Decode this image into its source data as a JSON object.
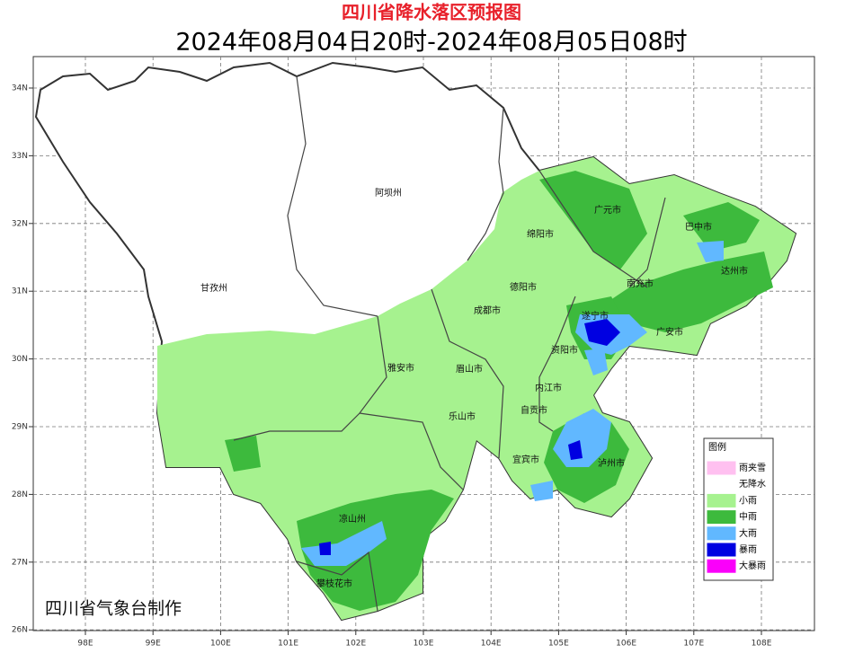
{
  "header": {
    "title": "四川省降水落区预报图",
    "subtitle": "2024年08月04日20时-2024年08月05日08时"
  },
  "map": {
    "lon_ticks": [
      "98E",
      "99E",
      "100E",
      "101E",
      "102E",
      "103E",
      "104E",
      "105E",
      "106E",
      "107E",
      "108E"
    ],
    "lat_ticks": [
      "34N",
      "33N",
      "32N",
      "31N",
      "30N",
      "29N",
      "28N",
      "27N",
      "26N"
    ],
    "regions": [
      "阿坝州",
      "广元市",
      "巴中市",
      "绵阳市",
      "达州市",
      "甘孜州",
      "德阳市",
      "南充市",
      "成都市",
      "遂宁市",
      "广安市",
      "资阳市",
      "雅安市",
      "眉山市",
      "内江市",
      "乐山市",
      "自贡市",
      "泸州市",
      "宜宾市",
      "凉山州",
      "攀枝花市"
    ],
    "credit": "四川省气象台制作"
  },
  "legend": {
    "title": "图例",
    "items": [
      {
        "label": "雨夹雪",
        "color": "#ffc0f0"
      },
      {
        "label": "无降水",
        "color": "#ffffff"
      },
      {
        "label": "小雨",
        "color": "#a6f28f"
      },
      {
        "label": "中雨",
        "color": "#3dba3d"
      },
      {
        "label": "大雨",
        "color": "#61b8ff"
      },
      {
        "label": "暴雨",
        "color": "#0000e1"
      },
      {
        "label": "大暴雨",
        "color": "#fa00fa"
      }
    ]
  }
}
